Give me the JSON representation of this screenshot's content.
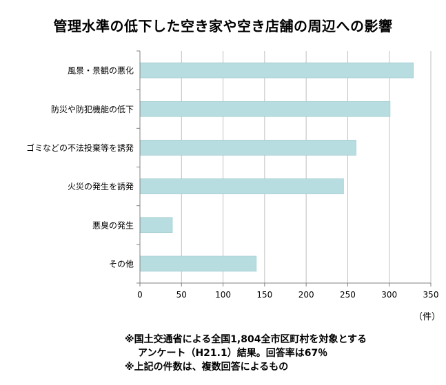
{
  "chart_data": {
    "type": "bar",
    "orientation": "horizontal",
    "title": "管理水準の低下した空き家や空き店舗の周辺への影響",
    "categories": [
      "風景・景観の悪化",
      "防災や防犯機能の低下",
      "ゴミなどの不法投棄等を誘発",
      "火災の発生を誘発",
      "悪臭の発生",
      "その他"
    ],
    "values": [
      329,
      301,
      260,
      245,
      39,
      140
    ],
    "xlim": [
      0,
      350
    ],
    "xticks": [
      0,
      50,
      100,
      150,
      200,
      250,
      300,
      350
    ],
    "xlabel": "（件）",
    "ylabel": "",
    "grid": true,
    "bar_color": "#b8dde0",
    "bar_edge_color": "#96c6ca",
    "grid_color": "#bfbfbf"
  },
  "notes": [
    "※国土交通省による全国1,804全市区町村を対象とする",
    "アンケート（H21.1）結果。回答率は67％",
    "※上記の件数は、複数回答によるもの"
  ]
}
